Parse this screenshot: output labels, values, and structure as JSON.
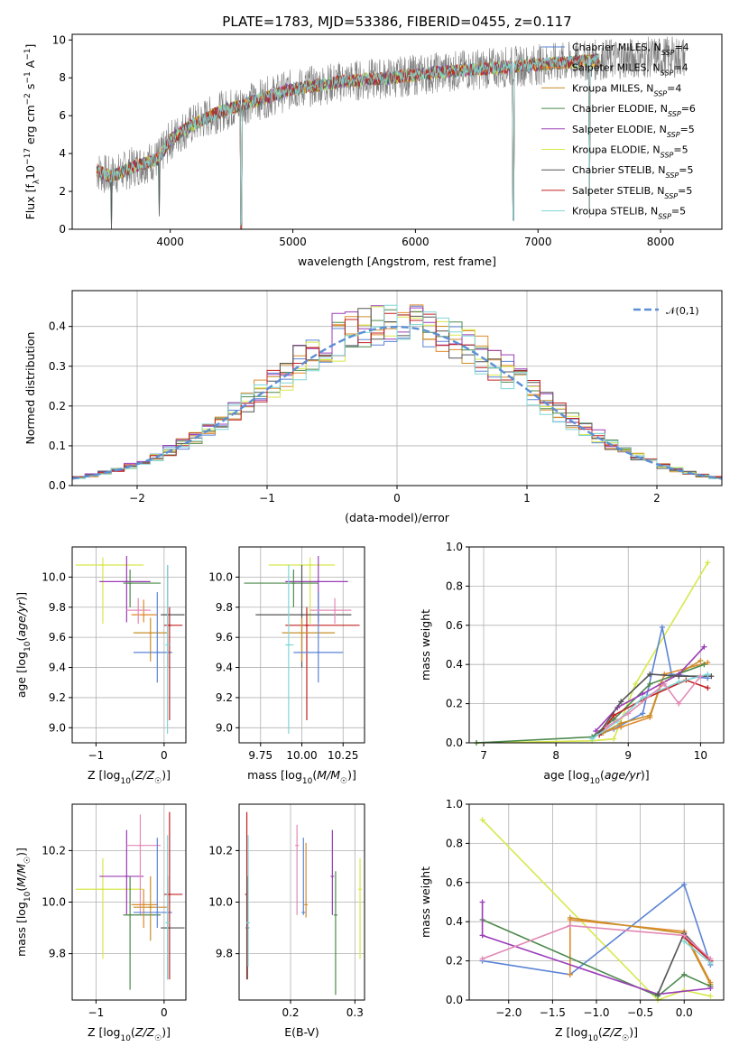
{
  "page_title": "PLATE=1783, MJD=53386, FIBERID=0455, z=0.117",
  "colors": {
    "Chabrier MILES": "#5b84d6",
    "Salpeter MILES": "#e08a2e",
    "Kroupa MILES": "#c98f2a",
    "Chabrier ELODIE": "#4d8a4d",
    "Salpeter ELODIE": "#9b3db8",
    "Kroupa ELODIE": "#d7e84a",
    "Chabrier STELIB": "#555555",
    "Salpeter STELIB": "#c42020",
    "Kroupa STELIB": "#7fd6d6",
    "data": "#808080",
    "normal": "#5b8fd6",
    "pink": "#e38ab5"
  },
  "chart_data": [
    {
      "id": "spectrum",
      "type": "line",
      "title": "PLATE=1783, MJD=53386, FIBERID=0455, z=0.117",
      "xlabel": "wavelength [Angstrom, rest frame]",
      "ylabel": "Flux [f_λ10^-17 erg cm^-2 s^-1 A^-1]",
      "xlim": [
        3200,
        8500
      ],
      "ylim": [
        0,
        10.3
      ],
      "xticks": [
        4000,
        5000,
        6000,
        7000,
        8000
      ],
      "yticks": [
        0,
        2,
        4,
        6,
        8,
        10
      ],
      "legend_position": "top-right",
      "legend": [
        {
          "label": "Chabrier MILES, N",
          "sub": "SSP",
          "suffix": "=4",
          "key": "Chabrier MILES"
        },
        {
          "label": "Salpeter MILES, N",
          "sub": "SSP",
          "suffix": "=4",
          "key": "Salpeter MILES"
        },
        {
          "label": "Kroupa MILES, N",
          "sub": "SSP",
          "suffix": "=4",
          "key": "Kroupa MILES"
        },
        {
          "label": "Chabrier ELODIE, N",
          "sub": "SSP",
          "suffix": "=6",
          "key": "Chabrier ELODIE"
        },
        {
          "label": "Salpeter ELODIE, N",
          "sub": "SSP",
          "suffix": "=5",
          "key": "Salpeter ELODIE"
        },
        {
          "label": "Kroupa ELODIE, N",
          "sub": "SSP",
          "suffix": "=5",
          "key": "Kroupa ELODIE"
        },
        {
          "label": "Chabrier STELIB, N",
          "sub": "SSP",
          "suffix": "=5",
          "key": "Chabrier STELIB"
        },
        {
          "label": "Salpeter STELIB, N",
          "sub": "SSP",
          "suffix": "=5",
          "key": "Salpeter STELIB"
        },
        {
          "label": "Kroupa STELIB, N",
          "sub": "SSP",
          "suffix": "=5",
          "key": "Kroupa STELIB"
        }
      ],
      "continuum": {
        "x": [
          3400,
          3500,
          3600,
          3700,
          3800,
          3900,
          4000,
          4100,
          4200,
          4300,
          4400,
          4500,
          4600,
          4700,
          4800,
          4900,
          5000,
          5200,
          5400,
          5600,
          5800,
          6000,
          6200,
          6400,
          6600,
          6800,
          7000,
          7200,
          7400,
          7600,
          7800,
          8000,
          8200
        ],
        "y": [
          3.1,
          2.8,
          3.0,
          3.3,
          3.5,
          3.7,
          4.7,
          5.2,
          5.6,
          5.9,
          6.2,
          6.4,
          6.6,
          6.8,
          7.0,
          7.2,
          7.4,
          7.6,
          7.8,
          7.9,
          8.0,
          8.15,
          8.3,
          8.4,
          8.5,
          8.6,
          8.7,
          8.8,
          8.9,
          9.0,
          9.05,
          9.1,
          9.1
        ]
      },
      "absorption_features": [
        {
          "x": 3520,
          "depth": 3.0
        },
        {
          "x": 3910,
          "depth": 3.0
        },
        {
          "x": 4580,
          "depth": 6.5
        },
        {
          "x": 6800,
          "depth": 8.0
        },
        {
          "x": 7420,
          "depth": 8.0
        }
      ]
    },
    {
      "id": "residuals",
      "type": "line",
      "xlabel": "(data-model)/error",
      "ylabel": "Normed distribution",
      "xlim": [
        -2.5,
        2.5
      ],
      "ylim": [
        0,
        0.49
      ],
      "xticks": [
        -2,
        -1,
        0,
        1,
        2
      ],
      "yticks": [
        0.0,
        0.1,
        0.2,
        0.3,
        0.4
      ],
      "legend_position": "top-right",
      "legend": [
        {
          "label": "𝒩(0,1)",
          "key": "normal"
        }
      ],
      "bin_width": 0.1,
      "series_variants": [
        {
          "key": "Chabrier MILES",
          "amp": 0.403,
          "offset": 0.0
        },
        {
          "key": "Salpeter MILES",
          "amp": 0.41,
          "offset": 0.05
        },
        {
          "key": "Kroupa MILES",
          "amp": 0.4,
          "offset": -0.03
        },
        {
          "key": "Chabrier ELODIE",
          "amp": 0.405,
          "offset": 0.02
        },
        {
          "key": "Salpeter ELODIE",
          "amp": 0.42,
          "offset": -0.05
        },
        {
          "key": "Kroupa ELODIE",
          "amp": 0.4,
          "offset": 0.03
        },
        {
          "key": "Chabrier STELIB",
          "amp": 0.41,
          "offset": -0.02
        },
        {
          "key": "Salpeter STELIB",
          "amp": 0.405,
          "offset": 0.01
        },
        {
          "key": "Kroupa STELIB",
          "amp": 0.4,
          "offset": 0.0
        }
      ]
    },
    {
      "id": "Z_age",
      "type": "scatter",
      "xlabel": "Z [log10(Z/Z☉)]",
      "ylabel": "age [log10(age/yr)]",
      "xlim": [
        -1.35,
        0.32
      ],
      "ylim": [
        8.9,
        10.2
      ],
      "xticks": [
        -1,
        0
      ],
      "yticks": [
        9.0,
        9.2,
        9.4,
        9.6,
        9.8,
        10.0
      ],
      "points": [
        {
          "key": "Kroupa ELODIE",
          "x": -0.9,
          "y": 10.08,
          "x1": -1.3,
          "x2": -0.3,
          "y1": 9.69,
          "y2": 10.13
        },
        {
          "key": "Salpeter ELODIE",
          "x": -0.55,
          "y": 9.97,
          "x1": -0.95,
          "x2": -0.2,
          "y1": 9.7,
          "y2": 10.14
        },
        {
          "key": "Chabrier ELODIE",
          "x": -0.5,
          "y": 9.96,
          "x1": -0.6,
          "x2": -0.05,
          "y1": 9.8,
          "y2": 10.05
        },
        {
          "key": "Salpeter MILES",
          "x": -0.3,
          "y": 9.75,
          "x1": -0.48,
          "x2": -0.1,
          "y1": 9.7,
          "y2": 9.85
        },
        {
          "key": "Kroupa MILES",
          "x": -0.2,
          "y": 9.63,
          "x1": -0.45,
          "x2": 0.05,
          "y1": 9.44,
          "y2": 9.73
        },
        {
          "key": "Chabrier MILES",
          "x": -0.1,
          "y": 9.5,
          "x1": -0.45,
          "x2": 0.12,
          "y1": 9.3,
          "y2": 9.9
        },
        {
          "key": "Chabrier STELIB",
          "x": 0.05,
          "y": 9.75,
          "x1": -0.05,
          "x2": 0.3,
          "y1": 9.4,
          "y2": 10.08
        },
        {
          "key": "Salpeter STELIB",
          "x": 0.08,
          "y": 9.68,
          "x1": 0.0,
          "x2": 0.27,
          "y1": 9.05,
          "y2": 9.8
        },
        {
          "key": "Kroupa STELIB",
          "x": 0.05,
          "y": 9.55,
          "x1": 0.02,
          "x2": 0.08,
          "y1": 8.96,
          "y2": 10.08
        },
        {
          "key": "pink",
          "x": -0.38,
          "y": 9.78,
          "x1": -0.55,
          "x2": -0.2,
          "y1": 9.69,
          "y2": 9.86
        }
      ]
    },
    {
      "id": "mass_age",
      "type": "scatter",
      "xlabel": "mass [log10(M/M☉)]",
      "ylabel": "",
      "xlim": [
        9.62,
        10.38
      ],
      "ylim": [
        8.9,
        10.2
      ],
      "xticks": [
        9.75,
        10.0,
        10.25
      ],
      "yticks": [
        9.0,
        9.2,
        9.4,
        9.6,
        9.8,
        10.0
      ],
      "points": [
        {
          "key": "Kroupa ELODIE",
          "x": 10.05,
          "y": 10.08,
          "x1": 9.8,
          "x2": 10.2,
          "y1": 9.69,
          "y2": 10.13
        },
        {
          "key": "Salpeter ELODIE",
          "x": 10.1,
          "y": 9.97,
          "x1": 9.9,
          "x2": 10.28,
          "y1": 9.7,
          "y2": 10.14
        },
        {
          "key": "Chabrier ELODIE",
          "x": 9.95,
          "y": 9.96,
          "x1": 9.65,
          "x2": 10.1,
          "y1": 9.8,
          "y2": 10.05
        },
        {
          "key": "Chabrier STELIB",
          "x": 10.0,
          "y": 9.75,
          "x1": 9.72,
          "x2": 10.3,
          "y1": 9.4,
          "y2": 10.08
        },
        {
          "key": "Salpeter STELIB",
          "x": 10.03,
          "y": 9.68,
          "x1": 9.9,
          "x2": 10.35,
          "y1": 9.05,
          "y2": 9.8
        },
        {
          "key": "Kroupa MILES",
          "x": 10.0,
          "y": 9.63,
          "x1": 9.88,
          "x2": 10.2,
          "y1": 9.44,
          "y2": 9.73
        },
        {
          "key": "Chabrier MILES",
          "x": 10.1,
          "y": 9.5,
          "x1": 9.95,
          "x2": 10.25,
          "y1": 9.3,
          "y2": 9.9
        },
        {
          "key": "Kroupa STELIB",
          "x": 9.92,
          "y": 9.55,
          "x1": 9.9,
          "x2": 9.95,
          "y1": 8.96,
          "y2": 10.08
        },
        {
          "key": "pink",
          "x": 10.2,
          "y": 9.78,
          "x1": 10.05,
          "x2": 10.3,
          "y1": 9.69,
          "y2": 9.86
        }
      ]
    },
    {
      "id": "age_weight",
      "type": "line",
      "xlabel": "age [log10(age/yr)]",
      "ylabel": "mass weight",
      "xlim": [
        6.8,
        10.32
      ],
      "ylim": [
        0,
        1.0
      ],
      "xticks": [
        7,
        8,
        9,
        10
      ],
      "yticks": [
        0.0,
        0.2,
        0.4,
        0.6,
        0.8,
        1.0
      ],
      "series": [
        {
          "key": "Kroupa ELODIE",
          "x": [
            6.9,
            8.5,
            8.8,
            9.1,
            10.1
          ],
          "y": [
            0.0,
            0.01,
            0.02,
            0.3,
            0.92
          ]
        },
        {
          "key": "Chabrier MILES",
          "x": [
            8.5,
            8.8,
            9.2,
            9.47,
            9.6,
            10.1
          ],
          "y": [
            0.03,
            0.07,
            0.15,
            0.59,
            0.35,
            0.33
          ]
        },
        {
          "key": "Salpeter MILES",
          "x": [
            8.6,
            8.9,
            9.3,
            9.5,
            10.1
          ],
          "y": [
            0.05,
            0.08,
            0.13,
            0.35,
            0.41
          ]
        },
        {
          "key": "Kroupa MILES",
          "x": [
            8.65,
            8.9,
            9.3,
            9.45,
            10.0
          ],
          "y": [
            0.05,
            0.1,
            0.14,
            0.3,
            0.42
          ]
        },
        {
          "key": "Chabrier ELODIE",
          "x": [
            6.9,
            8.5,
            8.8,
            9.3,
            10.05
          ],
          "y": [
            0.0,
            0.03,
            0.12,
            0.3,
            0.4
          ]
        },
        {
          "key": "Salpeter ELODIE",
          "x": [
            8.55,
            8.85,
            9.2,
            9.7,
            10.05
          ],
          "y": [
            0.06,
            0.18,
            0.25,
            0.35,
            0.49
          ]
        },
        {
          "key": "Chabrier STELIB",
          "x": [
            8.6,
            8.9,
            9.3,
            9.7,
            10.15
          ],
          "y": [
            0.05,
            0.21,
            0.35,
            0.34,
            0.34
          ]
        },
        {
          "key": "Salpeter STELIB",
          "x": [
            8.6,
            8.8,
            9.2,
            9.8,
            10.1
          ],
          "y": [
            0.04,
            0.14,
            0.22,
            0.32,
            0.28
          ]
        },
        {
          "key": "Kroupa STELIB",
          "x": [
            8.5,
            8.85,
            9.2,
            9.7,
            10.1
          ],
          "y": [
            0.02,
            0.11,
            0.23,
            0.31,
            0.35
          ]
        },
        {
          "key": "pink",
          "x": [
            8.7,
            9.0,
            9.5,
            9.7,
            10.0
          ],
          "y": [
            0.08,
            0.15,
            0.3,
            0.2,
            0.34
          ]
        }
      ]
    },
    {
      "id": "Z_mass",
      "type": "scatter",
      "xlabel": "Z [log10(Z/Z☉)]",
      "ylabel": "mass [log10(M/M☉)]",
      "xlim": [
        -1.35,
        0.32
      ],
      "ylim": [
        9.62,
        10.38
      ],
      "xticks": [
        -1,
        0
      ],
      "yticks": [
        9.8,
        10.0,
        10.2
      ],
      "points": [
        {
          "key": "Kroupa ELODIE",
          "x": -0.9,
          "y": 10.05,
          "x1": -1.3,
          "x2": -0.3,
          "y1": 9.78,
          "y2": 10.17
        },
        {
          "key": "Salpeter ELODIE",
          "x": -0.55,
          "y": 10.1,
          "x1": -0.95,
          "x2": -0.3,
          "y1": 9.95,
          "y2": 10.28
        },
        {
          "key": "pink",
          "x": -0.35,
          "y": 10.22,
          "x1": -0.55,
          "x2": -0.05,
          "y1": 9.95,
          "y2": 10.34
        },
        {
          "key": "Chabrier ELODIE",
          "x": -0.5,
          "y": 9.95,
          "x1": -0.6,
          "x2": -0.05,
          "y1": 9.66,
          "y2": 10.1
        },
        {
          "key": "Salpeter MILES",
          "x": -0.3,
          "y": 9.99,
          "x1": -0.48,
          "x2": -0.1,
          "y1": 9.9,
          "y2": 10.05
        },
        {
          "key": "Kroupa MILES",
          "x": -0.2,
          "y": 9.98,
          "x1": -0.45,
          "x2": 0.05,
          "y1": 9.85,
          "y2": 10.1
        },
        {
          "key": "Chabrier MILES",
          "x": -0.1,
          "y": 9.96,
          "x1": -0.45,
          "x2": 0.12,
          "y1": 9.9,
          "y2": 10.25
        },
        {
          "key": "Salpeter STELIB",
          "x": 0.08,
          "y": 10.03,
          "x1": 0.0,
          "x2": 0.27,
          "y1": 9.7,
          "y2": 10.35
        },
        {
          "key": "Chabrier STELIB",
          "x": 0.05,
          "y": 9.9,
          "x1": -0.05,
          "x2": 0.3,
          "y1": 9.7,
          "y2": 10.1
        },
        {
          "key": "Kroupa STELIB",
          "x": 0.05,
          "y": 9.92,
          "x1": 0.02,
          "x2": 0.08,
          "y1": 9.7,
          "y2": 10.26
        }
      ]
    },
    {
      "id": "ebv_mass",
      "type": "scatter",
      "xlabel": "E(B-V)",
      "ylabel": "",
      "xlim": [
        0.12,
        0.315
      ],
      "ylim": [
        9.62,
        10.38
      ],
      "xticks": [
        0.2,
        0.3
      ],
      "yticks": [
        9.8,
        10.0,
        10.2
      ],
      "points": [
        {
          "key": "Salpeter STELIB",
          "x": 0.132,
          "y": 10.03,
          "y1": 9.7,
          "y2": 10.35
        },
        {
          "key": "Chabrier STELIB",
          "x": 0.133,
          "y": 9.9,
          "y1": 9.7,
          "y2": 10.1
        },
        {
          "key": "Kroupa STELIB",
          "x": 0.134,
          "y": 9.92,
          "y1": 9.75,
          "y2": 10.26
        },
        {
          "key": "pink",
          "x": 0.21,
          "y": 10.22,
          "y1": 9.95,
          "y2": 10.3
        },
        {
          "key": "Chabrier MILES",
          "x": 0.22,
          "y": 9.96,
          "y1": 9.95,
          "y2": 10.25
        },
        {
          "key": "Salpeter MILES",
          "x": 0.224,
          "y": 9.99,
          "y1": 9.94,
          "y2": 10.23
        },
        {
          "key": "Salpeter ELODIE",
          "x": 0.265,
          "y": 10.1,
          "y1": 9.95,
          "y2": 10.28
        },
        {
          "key": "Chabrier ELODIE",
          "x": 0.27,
          "y": 9.95,
          "y1": 9.64,
          "y2": 10.12
        },
        {
          "key": "Kroupa ELODIE",
          "x": 0.308,
          "y": 10.05,
          "y1": 9.78,
          "y2": 10.17
        }
      ]
    },
    {
      "id": "Z_weight",
      "type": "line",
      "xlabel": "Z [log10(Z/Z☉)]",
      "ylabel": "mass weight",
      "xlim": [
        -2.45,
        0.45
      ],
      "ylim": [
        0,
        1.0
      ],
      "xticks": [
        -2.0,
        -1.5,
        -1.0,
        -0.5,
        0.0
      ],
      "yticks": [
        0.0,
        0.2,
        0.4,
        0.6,
        0.8,
        1.0
      ],
      "series": [
        {
          "key": "Kroupa ELODIE",
          "x": [
            -2.3,
            -0.3,
            0.0,
            0.3
          ],
          "y": [
            0.92,
            0.0,
            0.05,
            0.02
          ]
        },
        {
          "key": "Chabrier MILES",
          "x": [
            -2.3,
            -1.3,
            0.0,
            0.3
          ],
          "y": [
            0.2,
            0.13,
            0.59,
            0.18
          ]
        },
        {
          "key": "Salpeter MILES",
          "x": [
            -1.3,
            -1.3,
            0.0,
            0.3
          ],
          "y": [
            0.13,
            0.41,
            0.35,
            0.09
          ]
        },
        {
          "key": "Kroupa MILES",
          "x": [
            -1.3,
            0.0,
            0.3
          ],
          "y": [
            0.42,
            0.34,
            0.08
          ]
        },
        {
          "key": "Chabrier ELODIE",
          "x": [
            -2.3,
            -0.3,
            0.0,
            0.3
          ],
          "y": [
            0.41,
            0.02,
            0.13,
            0.07
          ]
        },
        {
          "key": "Salpeter ELODIE",
          "x": [
            -2.3,
            -2.3,
            -0.3,
            0.3
          ],
          "y": [
            0.5,
            0.33,
            0.03,
            0.06
          ]
        },
        {
          "key": "Chabrier STELIB",
          "x": [
            -0.3,
            0.0,
            0.3
          ],
          "y": [
            0.03,
            0.34,
            0.2
          ]
        },
        {
          "key": "Salpeter STELIB",
          "x": [
            0.0,
            0.3
          ],
          "y": [
            0.32,
            0.2
          ]
        },
        {
          "key": "Kroupa STELIB",
          "x": [
            0.0,
            0.3
          ],
          "y": [
            0.3,
            0.19
          ]
        },
        {
          "key": "pink",
          "x": [
            -2.3,
            -1.3,
            0.0,
            0.3
          ],
          "y": [
            0.21,
            0.38,
            0.33,
            0.21
          ]
        }
      ]
    }
  ]
}
